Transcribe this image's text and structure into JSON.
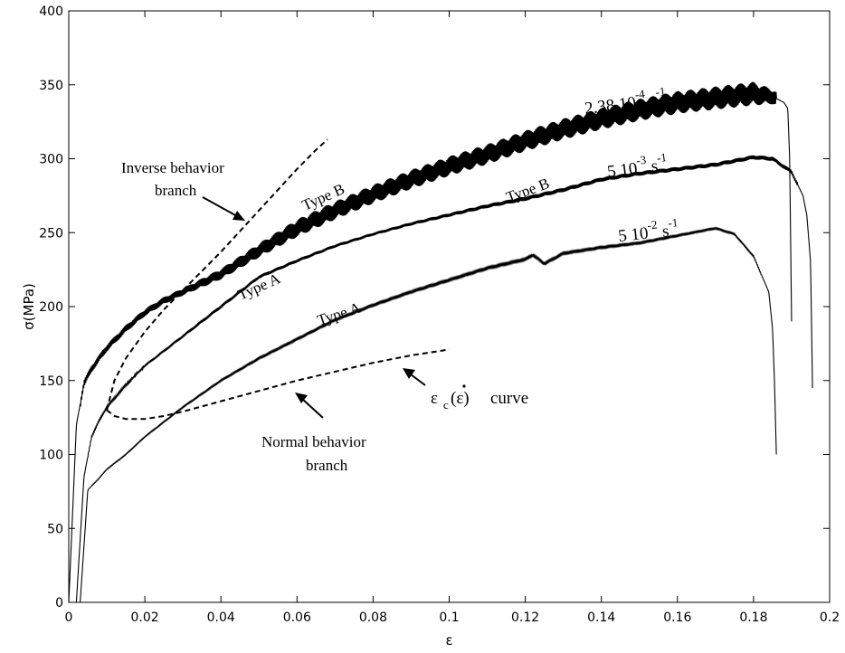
{
  "chart_data": {
    "type": "line",
    "title": "",
    "xlabel": "ε",
    "ylabel": "σ(MPa)",
    "xlim": [
      0,
      0.2
    ],
    "ylim": [
      0,
      400
    ],
    "xticks": [
      0,
      0.02,
      0.04,
      0.06,
      0.08,
      0.1,
      0.12,
      0.14,
      0.16,
      0.18,
      0.2
    ],
    "xtick_labels": [
      "0",
      "0.02",
      "0.04",
      "0.06",
      "0.08",
      "0.1",
      "0.12",
      "0.14",
      "0.16",
      "0.18",
      "0.2"
    ],
    "yticks": [
      0,
      50,
      100,
      150,
      200,
      250,
      300,
      350,
      400
    ],
    "ytick_labels": [
      "0",
      "50",
      "100",
      "150",
      "200",
      "250",
      "300",
      "350",
      "400"
    ],
    "grid": false,
    "series": [
      {
        "label": [
          "2.38 10",
          "-4",
          " s",
          "-1"
        ],
        "style": "solid",
        "serrated": true,
        "serration_amplitude": [
          [
            0.03,
            5
          ],
          [
            0.06,
            12
          ],
          [
            0.12,
            14
          ],
          [
            0.18,
            16
          ],
          [
            0.187,
            8
          ]
        ],
        "x": [
          0,
          0.002,
          0.004,
          0.006,
          0.01,
          0.015,
          0.02,
          0.025,
          0.03,
          0.04,
          0.05,
          0.06,
          0.07,
          0.08,
          0.09,
          0.1,
          0.11,
          0.12,
          0.13,
          0.14,
          0.15,
          0.16,
          0.17,
          0.18,
          0.185,
          0.188,
          0.189,
          0.1895,
          0.19
        ],
        "y": [
          0,
          120,
          148,
          158,
          172,
          185,
          196,
          204,
          210,
          222,
          238,
          253,
          265,
          276,
          286,
          295,
          303,
          312,
          320,
          327,
          333,
          338,
          341,
          344,
          342,
          338,
          334,
          300,
          190
        ]
      },
      {
        "label": [
          "5 10",
          "-3",
          " s",
          "-1"
        ],
        "style": "solid",
        "serrated": true,
        "serration_amplitude": [
          [
            0.01,
            1.5
          ],
          [
            0.04,
            2.5
          ],
          [
            0.08,
            2
          ],
          [
            0.12,
            3
          ],
          [
            0.18,
            3
          ]
        ],
        "x": [
          0.002,
          0.004,
          0.006,
          0.008,
          0.01,
          0.015,
          0.02,
          0.03,
          0.04,
          0.05,
          0.06,
          0.07,
          0.08,
          0.09,
          0.1,
          0.11,
          0.12,
          0.13,
          0.14,
          0.15,
          0.16,
          0.17,
          0.18,
          0.185,
          0.19,
          0.193,
          0.194,
          0.195,
          0.1955
        ],
        "y": [
          0,
          85,
          112,
          123,
          132,
          147,
          160,
          180,
          200,
          220,
          231,
          241,
          249,
          256,
          262,
          268,
          273,
          279,
          286,
          290,
          293,
          296,
          301,
          300,
          291,
          275,
          262,
          230,
          145
        ]
      },
      {
        "label": [
          "5 10",
          "-2",
          " s",
          "-1"
        ],
        "style": "solid",
        "serrated": true,
        "serration_amplitude": [
          [
            0.004,
            0.5
          ],
          [
            0.05,
            1.2
          ],
          [
            0.12,
            1.5
          ],
          [
            0.17,
            1
          ]
        ],
        "x": [
          0.003,
          0.005,
          0.008,
          0.01,
          0.015,
          0.02,
          0.03,
          0.04,
          0.05,
          0.06,
          0.07,
          0.08,
          0.09,
          0.1,
          0.11,
          0.12,
          0.122,
          0.125,
          0.13,
          0.14,
          0.15,
          0.16,
          0.17,
          0.175,
          0.18,
          0.184,
          0.185,
          0.1855,
          0.186
        ],
        "y": [
          0,
          76,
          84,
          90,
          100,
          112,
          132,
          150,
          165,
          178,
          191,
          201,
          210,
          218,
          226,
          232,
          235,
          229,
          236,
          240,
          243,
          248,
          253,
          249,
          234,
          210,
          185,
          150,
          100
        ]
      },
      {
        "label": "Inverse behavior branch",
        "style": "dashed",
        "x": [
          0.01,
          0.012,
          0.015,
          0.02,
          0.025,
          0.03,
          0.035,
          0.04,
          0.045,
          0.05,
          0.055,
          0.06,
          0.065,
          0.068
        ],
        "y": [
          130,
          150,
          165,
          183,
          198,
          211,
          224,
          237,
          251,
          265,
          279,
          293,
          306,
          313
        ]
      },
      {
        "label": "Normal behavior branch",
        "style": "dashed",
        "x": [
          0.01,
          0.012,
          0.015,
          0.02,
          0.025,
          0.03,
          0.04,
          0.05,
          0.06,
          0.07,
          0.08,
          0.09,
          0.1
        ],
        "y": [
          130,
          126,
          124,
          124,
          126,
          129,
          136,
          143,
          150,
          156,
          162,
          167,
          171
        ]
      }
    ],
    "annotations": [
      {
        "text": "Inverse behavior",
        "x": 0.02,
        "y": 290
      },
      {
        "text": "branch",
        "x": 0.028,
        "y": 278
      },
      {
        "text": "Normal behavior",
        "x": 0.065,
        "y": 100
      },
      {
        "text": "branch",
        "x": 0.071,
        "y": 88
      },
      {
        "text": "Type B",
        "x": 0.065,
        "y": 255
      },
      {
        "text": "Type A",
        "x": 0.05,
        "y": 215
      },
      {
        "text": "Type B",
        "x": 0.12,
        "y": 275
      },
      {
        "text": "Type A",
        "x": 0.095,
        "y": 195
      },
      {
        "text": "curve",
        "x": 0.092,
        "y": 128
      }
    ]
  }
}
